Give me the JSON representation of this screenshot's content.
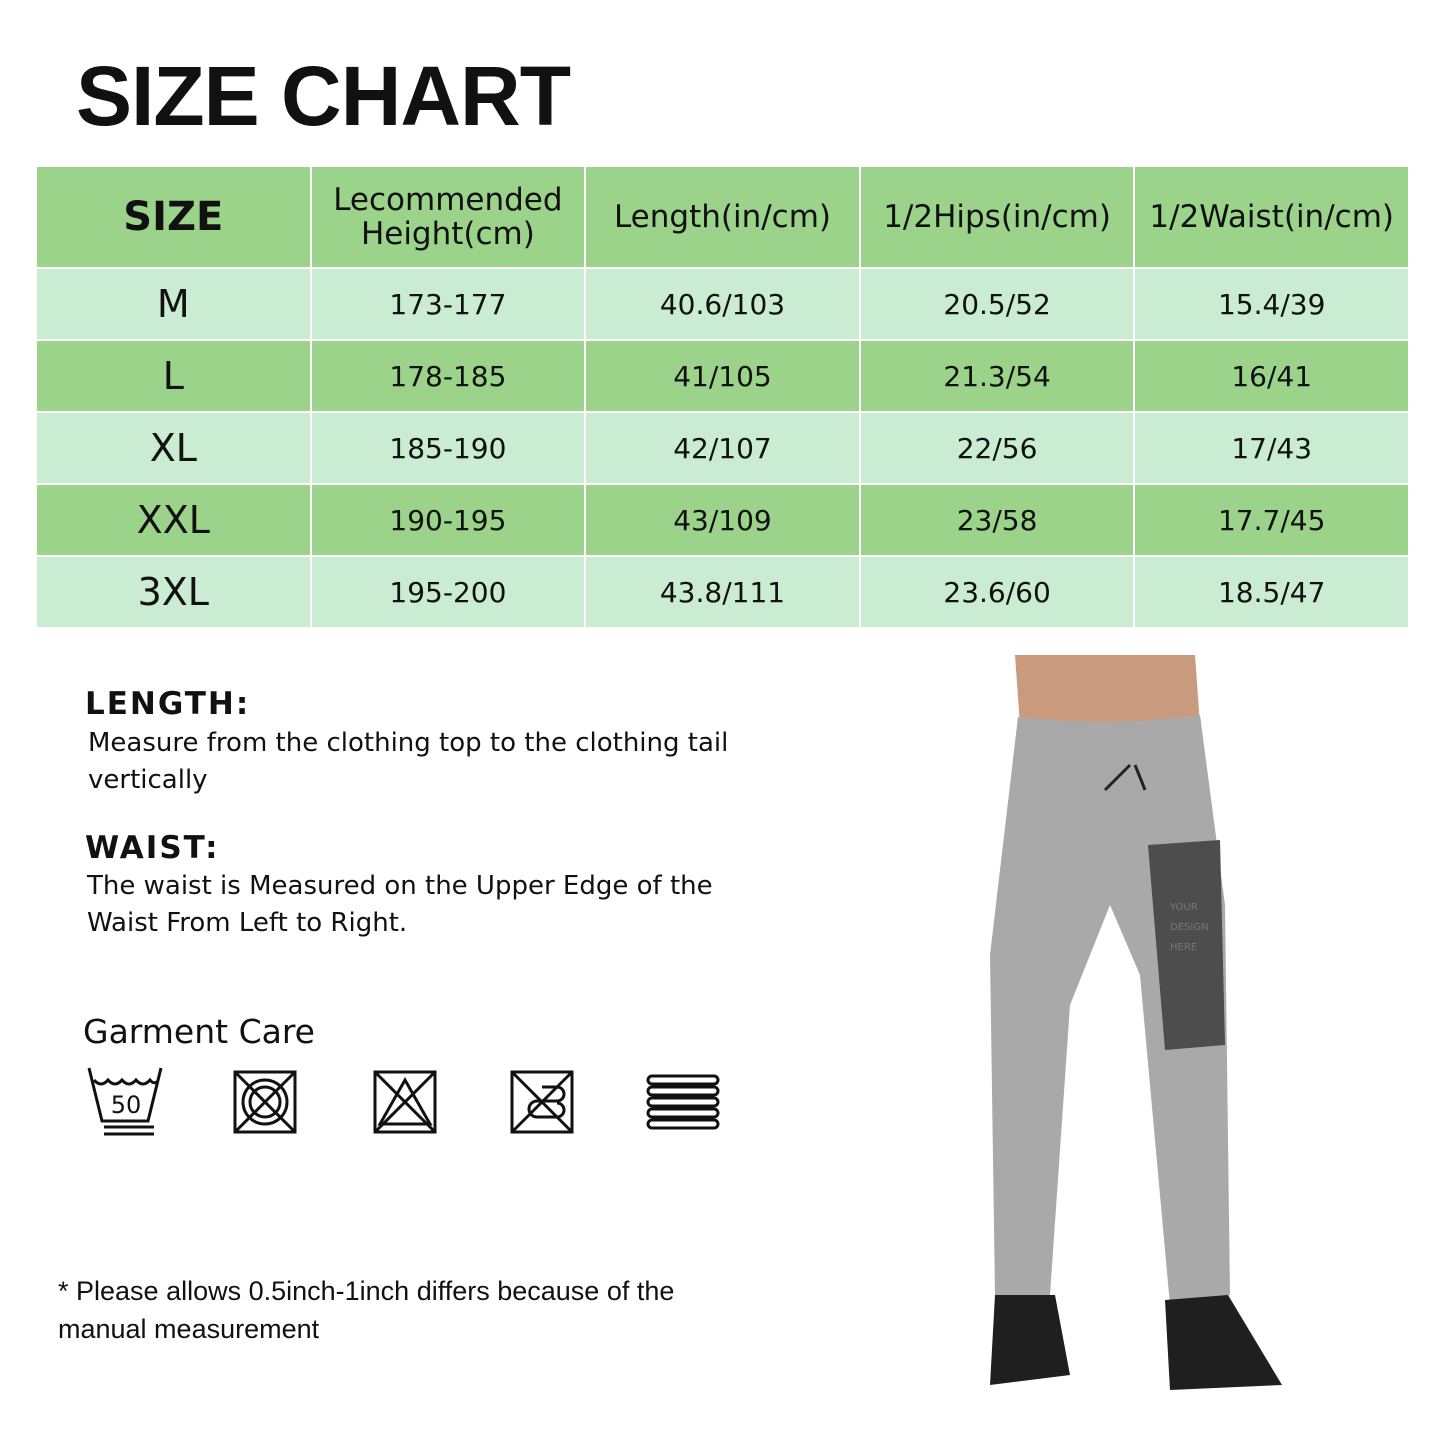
{
  "title": "SIZE CHART",
  "table": {
    "headers": [
      "SIZE",
      "Lecommended Height(cm)",
      "Length(in/cm)",
      "1/2Hips(in/cm)",
      "1/2Waist(in/cm)"
    ],
    "rows": [
      [
        "M",
        "173-177",
        "40.6/103",
        "20.5/52",
        "15.4/39"
      ],
      [
        "L",
        "178-185",
        "41/105",
        "21.3/54",
        "16/41"
      ],
      [
        "XL",
        "185-190",
        "42/107",
        "22/56",
        "17/43"
      ],
      [
        "XXL",
        "190-195",
        "43/109",
        "23/58",
        "17.7/45"
      ],
      [
        "3XL",
        "195-200",
        "43.8/111",
        "23.6/60",
        "18.5/47"
      ]
    ]
  },
  "length": {
    "heading": "LENGTH:",
    "text": "Measure from the clothing top to the clothing tail vertically"
  },
  "waist": {
    "heading": "WAIST:",
    "text": "The waist is Measured on the Upper Edge of the Waist From Left to Right."
  },
  "care": {
    "heading": "Garment Care",
    "wash_temp": "50",
    "icons": [
      "wash-50-icon",
      "do-not-tumble-dry-icon",
      "do-not-bleach-icon",
      "do-not-dry-clean-icon",
      "dry-flat-icon"
    ]
  },
  "note": "* Please allows 0.5inch-1inch differs because of the manual measurement",
  "product": {
    "print_label": "YOUR DESIGN HERE"
  },
  "colors": {
    "header": "#9cd38b",
    "light_row": "#c9ecd3"
  }
}
